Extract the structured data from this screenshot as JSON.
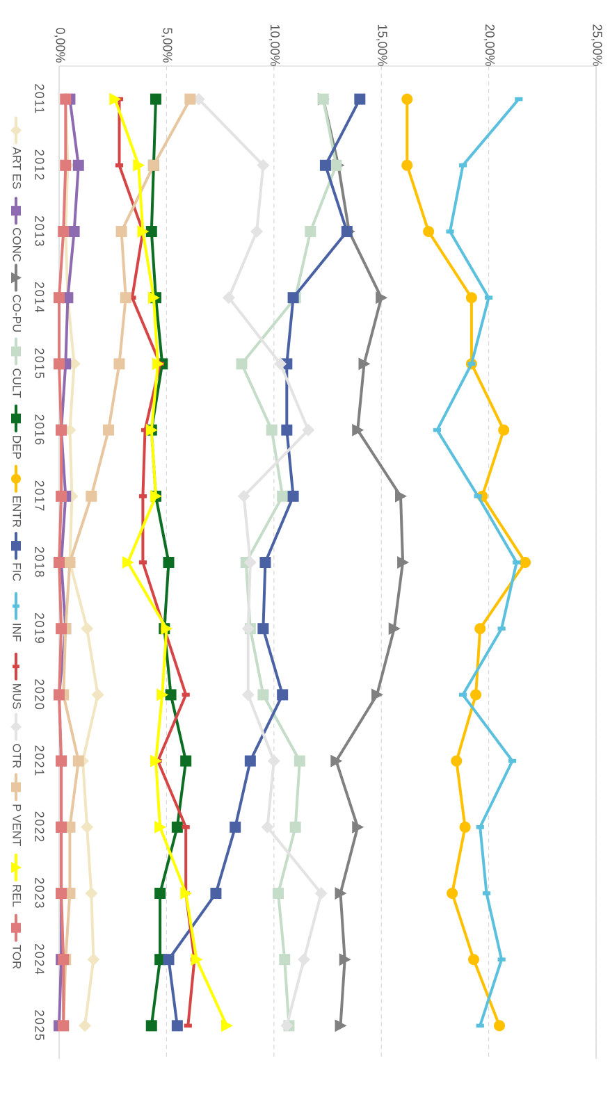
{
  "chart_data": {
    "type": "line",
    "orientation": "rotated-90-clockwise",
    "title": "",
    "xlabel": "",
    "ylabel": "",
    "ylim": [
      0,
      25
    ],
    "y_ticks": [
      0,
      5,
      10,
      15,
      20,
      25
    ],
    "y_tick_labels": [
      "0,00%",
      "5,00%",
      "10,00%",
      "15,00%",
      "20,00%",
      "25,00%"
    ],
    "grid": true,
    "legend_position": "bottom",
    "categories": [
      "2011",
      "2012",
      "2013",
      "2014",
      "2015",
      "2016",
      "2017",
      "2018",
      "2019",
      "2020",
      "2021",
      "2022",
      "2023",
      "2024",
      "2025"
    ],
    "series": [
      {
        "name": "ART ES",
        "color": "#F2E6C2",
        "marker": "diamond",
        "values": [
          0.3,
          0.4,
          0.3,
          0.4,
          0.7,
          0.5,
          0.6,
          0.5,
          1.3,
          1.8,
          1.1,
          1.3,
          1.5,
          1.6,
          1.2
        ]
      },
      {
        "name": "CONC",
        "color": "#8E6BB0",
        "marker": "square",
        "values": [
          0.5,
          0.9,
          0.7,
          0.4,
          0.3,
          0.1,
          0.3,
          0.1,
          0.3,
          0.0,
          0.1,
          0.1,
          0.1,
          0.1,
          0.0
        ]
      },
      {
        "name": "CO-PU",
        "color": "#808080",
        "marker": "triangle",
        "values": [
          12.3,
          13.0,
          13.5,
          15.0,
          14.2,
          13.9,
          15.9,
          16.0,
          15.6,
          14.8,
          12.9,
          13.9,
          13.1,
          13.3,
          13.1
        ]
      },
      {
        "name": "CULT",
        "color": "#C5DDC8",
        "marker": "square",
        "values": [
          12.3,
          12.9,
          11.7,
          11.0,
          8.5,
          9.9,
          10.4,
          8.7,
          8.9,
          9.5,
          11.2,
          11.0,
          10.2,
          10.5,
          10.7
        ]
      },
      {
        "name": "DEP",
        "color": "#0B6E23",
        "marker": "square",
        "values": [
          4.5,
          4.4,
          4.3,
          4.5,
          4.8,
          4.3,
          4.5,
          5.1,
          4.9,
          5.2,
          5.9,
          5.5,
          4.7,
          4.7,
          4.3
        ]
      },
      {
        "name": "ENTR",
        "color": "#FFC000",
        "marker": "circle",
        "values": [
          16.2,
          16.2,
          17.2,
          19.2,
          19.2,
          20.7,
          19.7,
          21.7,
          19.6,
          19.4,
          18.5,
          18.9,
          18.3,
          19.3,
          20.5
        ]
      },
      {
        "name": "FIC",
        "color": "#4A62A4",
        "marker": "square",
        "values": [
          14.0,
          12.4,
          13.4,
          10.9,
          10.6,
          10.6,
          10.9,
          9.6,
          9.5,
          10.4,
          8.9,
          8.2,
          7.3,
          5.1,
          5.5
        ]
      },
      {
        "name": "INF",
        "color": "#5BC0DE",
        "marker": "dash",
        "values": [
          21.4,
          18.8,
          18.2,
          20.0,
          19.2,
          17.6,
          19.5,
          21.3,
          20.6,
          18.8,
          21.1,
          19.6,
          19.9,
          20.6,
          19.6
        ]
      },
      {
        "name": "MUS",
        "color": "#D64545",
        "marker": "dash",
        "values": [
          2.8,
          2.8,
          3.9,
          3.4,
          4.7,
          4.0,
          3.9,
          3.9,
          4.9,
          5.9,
          4.6,
          5.9,
          5.9,
          6.3,
          6.0
        ]
      },
      {
        "name": "OTR",
        "color": "#E3E3E3",
        "marker": "diamond",
        "values": [
          6.5,
          9.5,
          9.2,
          7.9,
          10.3,
          11.6,
          8.6,
          8.9,
          8.8,
          8.8,
          10.0,
          9.7,
          12.2,
          11.4,
          10.6
        ]
      },
      {
        "name": "P VENT",
        "color": "#E8C7A0",
        "marker": "square",
        "values": [
          6.1,
          4.4,
          2.9,
          3.1,
          2.8,
          2.3,
          1.5,
          0.5,
          0.3,
          0.2,
          0.9,
          0.5,
          0.5,
          0.3,
          0.2
        ]
      },
      {
        "name": "REL",
        "color": "#FFFF00",
        "marker": "triangle",
        "values": [
          2.6,
          3.7,
          3.9,
          4.4,
          4.6,
          4.3,
          4.5,
          3.2,
          5.0,
          4.8,
          4.5,
          4.7,
          5.9,
          6.4,
          7.8
        ]
      },
      {
        "name": "TOR",
        "color": "#E07B7B",
        "marker": "square",
        "values": [
          0.3,
          0.3,
          0.2,
          0.0,
          0.0,
          0.1,
          0.1,
          0.0,
          0.1,
          0.0,
          0.1,
          0.1,
          0.1,
          0.2,
          0.2
        ]
      }
    ]
  }
}
